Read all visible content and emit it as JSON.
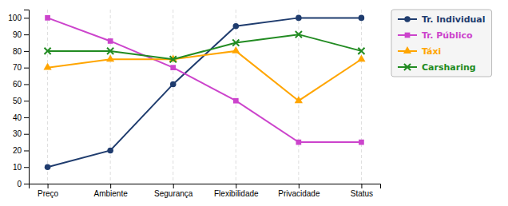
{
  "chart_data": {
    "type": "line",
    "categories": [
      "Preço",
      "Ambiente",
      "Segurança",
      "Flexibilidade",
      "Privacidade",
      "Status"
    ],
    "series": [
      {
        "name": "Tr. Individual",
        "color": "#1F3C6E",
        "marker": "circle",
        "values": [
          10,
          20,
          60,
          95,
          100,
          100
        ]
      },
      {
        "name": "Tr. Público",
        "color": "#CC44CC",
        "marker": "square",
        "values": [
          100,
          86,
          70,
          50,
          25,
          25
        ]
      },
      {
        "name": "Táxi",
        "color": "#FFA500",
        "marker": "triangle",
        "values": [
          70,
          75,
          75,
          80,
          50,
          75
        ]
      },
      {
        "name": "Carsharing",
        "color": "#228B22",
        "marker": "x",
        "values": [
          80,
          80,
          75,
          85,
          90,
          80
        ]
      }
    ],
    "ylim": [
      0,
      105
    ],
    "yticks": [
      0,
      10,
      20,
      30,
      40,
      50,
      60,
      70,
      80,
      90,
      100
    ],
    "grid": true,
    "legend": "right"
  }
}
